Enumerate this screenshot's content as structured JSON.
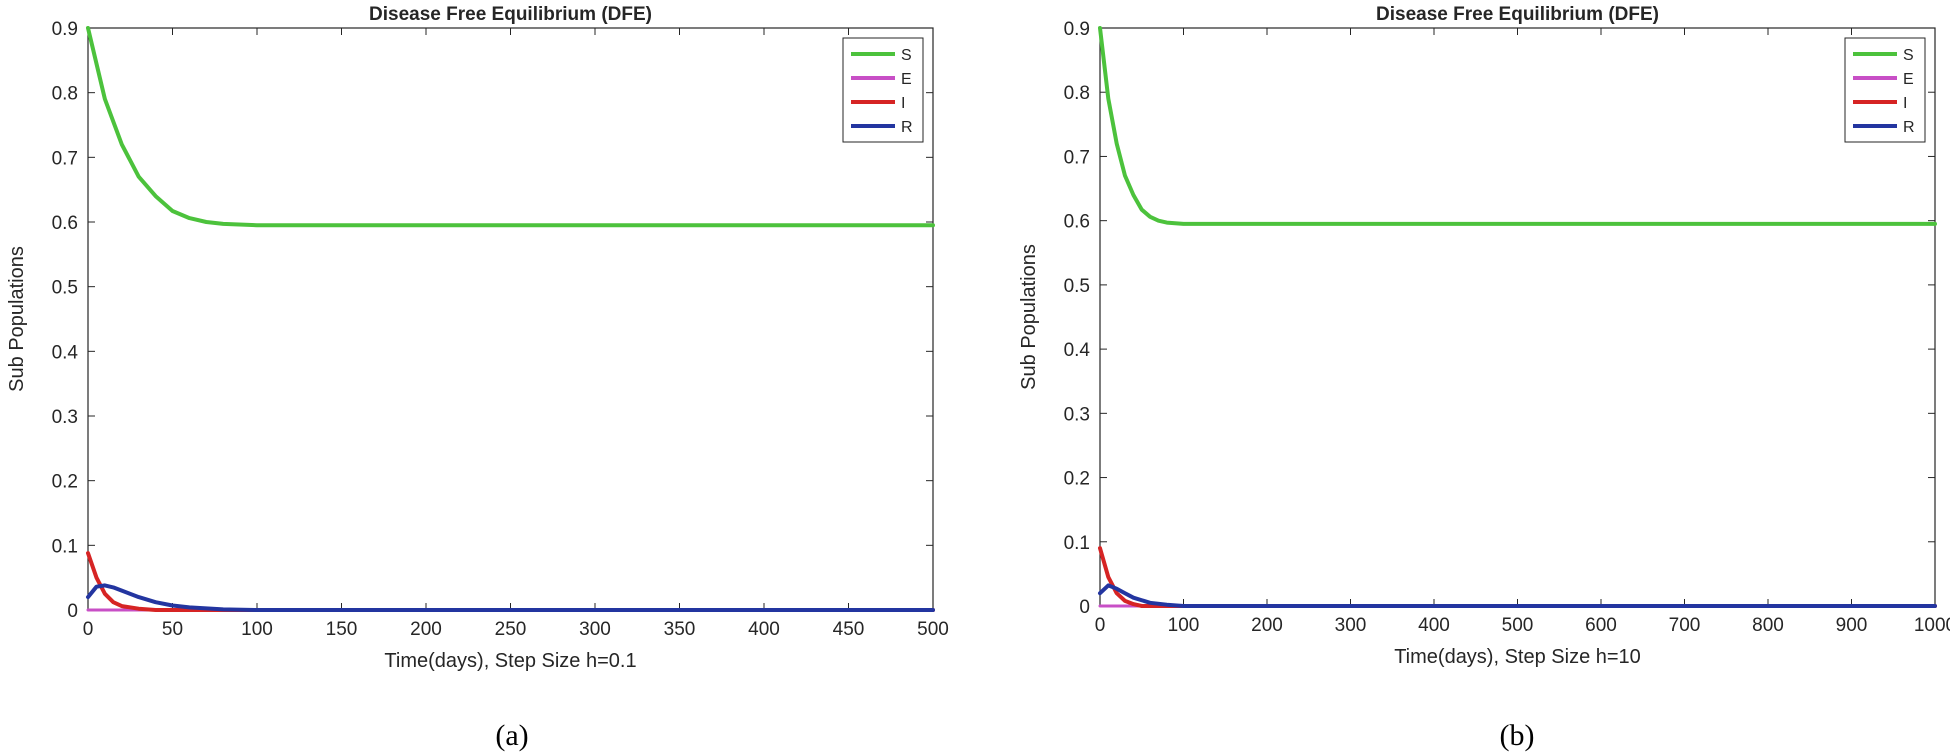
{
  "chart_data": [
    {
      "type": "line",
      "title": "Disease Free Equilibrium (DFE)",
      "xlabel": "Time(days), Step Size h=0.1",
      "ylabel": "Sub Populations",
      "caption": "(a)",
      "xlim": [
        0,
        500
      ],
      "ylim": [
        0,
        0.9
      ],
      "xticks": [
        0,
        50,
        100,
        150,
        200,
        250,
        300,
        350,
        400,
        450,
        500
      ],
      "yticks": [
        0,
        0.1,
        0.2,
        0.3,
        0.4,
        0.5,
        0.6,
        0.7,
        0.8,
        0.9
      ],
      "legend_position": "top-right",
      "series": [
        {
          "name": "S",
          "color": "#4cc23c",
          "x": [
            0,
            10,
            20,
            30,
            40,
            50,
            60,
            70,
            80,
            100,
            150,
            200,
            300,
            400,
            500
          ],
          "y": [
            0.9,
            0.79,
            0.72,
            0.67,
            0.64,
            0.617,
            0.606,
            0.6,
            0.597,
            0.595,
            0.595,
            0.595,
            0.595,
            0.595,
            0.595
          ]
        },
        {
          "name": "E",
          "color": "#c84fc6",
          "x": [
            0,
            500
          ],
          "y": [
            0,
            0
          ]
        },
        {
          "name": "I",
          "color": "#d62424",
          "x": [
            0,
            5,
            10,
            15,
            20,
            30,
            40,
            500
          ],
          "y": [
            0.088,
            0.05,
            0.025,
            0.012,
            0.006,
            0.002,
            0,
            0
          ]
        },
        {
          "name": "R",
          "color": "#2335a0",
          "x": [
            0,
            5,
            10,
            15,
            20,
            30,
            40,
            50,
            60,
            80,
            100,
            500
          ],
          "y": [
            0.02,
            0.036,
            0.038,
            0.035,
            0.03,
            0.02,
            0.012,
            0.007,
            0.004,
            0.001,
            0,
            0
          ]
        }
      ]
    },
    {
      "type": "line",
      "title": "Disease Free Equilibrium (DFE)",
      "xlabel": "Time(days), Step Size h=10",
      "ylabel": "Sub Populations",
      "caption": "(b)",
      "xlim": [
        0,
        1000
      ],
      "ylim": [
        0,
        0.9
      ],
      "xticks": [
        0,
        100,
        200,
        300,
        400,
        500,
        600,
        700,
        800,
        900,
        1000
      ],
      "yticks": [
        0,
        0.1,
        0.2,
        0.3,
        0.4,
        0.5,
        0.6,
        0.7,
        0.8,
        0.9
      ],
      "legend_position": "top-right",
      "series": [
        {
          "name": "S",
          "color": "#4cc23c",
          "x": [
            0,
            10,
            20,
            30,
            40,
            50,
            60,
            70,
            80,
            100,
            120,
            200,
            400,
            600,
            800,
            1000
          ],
          "y": [
            0.9,
            0.79,
            0.72,
            0.67,
            0.64,
            0.617,
            0.606,
            0.6,
            0.597,
            0.595,
            0.595,
            0.595,
            0.595,
            0.595,
            0.595,
            0.595
          ]
        },
        {
          "name": "E",
          "color": "#c84fc6",
          "x": [
            0,
            1000
          ],
          "y": [
            0,
            0
          ]
        },
        {
          "name": "I",
          "color": "#d62424",
          "x": [
            0,
            10,
            20,
            30,
            40,
            50,
            1000
          ],
          "y": [
            0.09,
            0.045,
            0.02,
            0.008,
            0.003,
            0,
            0
          ]
        },
        {
          "name": "R",
          "color": "#2335a0",
          "x": [
            0,
            10,
            20,
            30,
            40,
            60,
            80,
            100,
            1000
          ],
          "y": [
            0.02,
            0.032,
            0.027,
            0.02,
            0.013,
            0.005,
            0.002,
            0,
            0
          ]
        }
      ]
    }
  ]
}
